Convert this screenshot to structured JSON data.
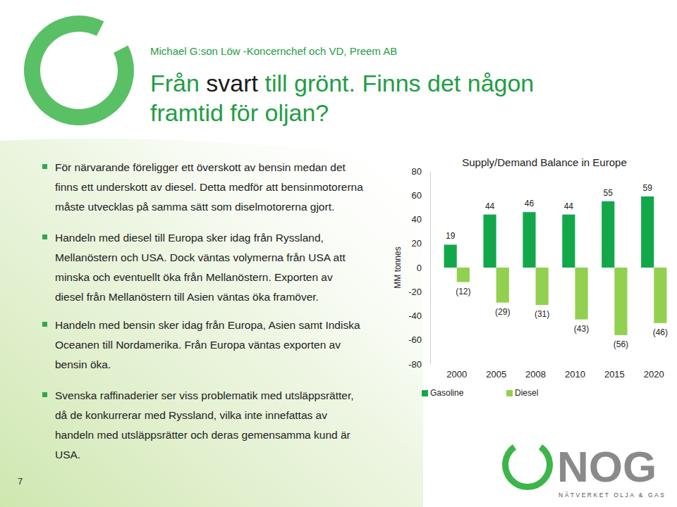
{
  "slide": {
    "header": "Michael G:son Löw -Koncernchef och VD, Preem AB",
    "title": [
      "Från ",
      "svart",
      " till grönt. Finns det någon",
      "framtid för oljan?"
    ],
    "bullets": [
      [
        "För närvarande föreligger ett överskott av bensin medan det",
        "finns ett underskott av diesel. Detta medför att bensinmotorerna",
        "måste utvecklas på samma sätt som diselmotorerna gjort."
      ],
      [
        "Handeln med diesel till Europa sker idag från Ryssland,",
        "Mellanöstern och USA. Dock väntas volymerna från USA att",
        "minska och eventuellt öka från Mellanöstern. Exporten av",
        "diesel från Mellanöstern till Asien väntas öka framöver."
      ],
      [
        "Handeln med bensin sker idag från Europa, Asien samt Indiska",
        "Oceanen till Nordamerika. Från Europa väntas exporten av",
        "bensin öka."
      ],
      [
        "Svenska raffinaderier ser viss problematik med utsläppsrätter,",
        "då de konkurrerar med Ryssland, vilka inte innefattas av",
        "handeln med utsläppsrätter och deras gemensamma kund är",
        "USA."
      ]
    ],
    "page_number": "7",
    "logo": {
      "name": "NOG",
      "tagline": "NÄTVERKET OLJA & GAS"
    }
  },
  "chart_data": {
    "type": "bar",
    "title": "Supply/Demand Balance in Europe",
    "y_label": "MM tonnes",
    "categories": [
      "2000",
      "2005",
      "2008",
      "2010",
      "2015",
      "2020"
    ],
    "series": [
      {
        "name": "Gasoline",
        "color": "#12a84a",
        "values": [
          19,
          44,
          46,
          44,
          55,
          59
        ]
      },
      {
        "name": "Diesel",
        "color": "#92d050",
        "values": [
          -12,
          -29,
          -31,
          -43,
          -56,
          -46
        ],
        "value_labels": [
          "(12)",
          "(29)",
          "(31)",
          "(43)",
          "(56)",
          "(46)"
        ]
      }
    ],
    "ylim": [
      -80,
      80
    ],
    "yticks": [
      -80,
      -60,
      -40,
      -20,
      0,
      20,
      40,
      60,
      80
    ],
    "grid": false,
    "legend": "bottom",
    "data_labels": true
  }
}
